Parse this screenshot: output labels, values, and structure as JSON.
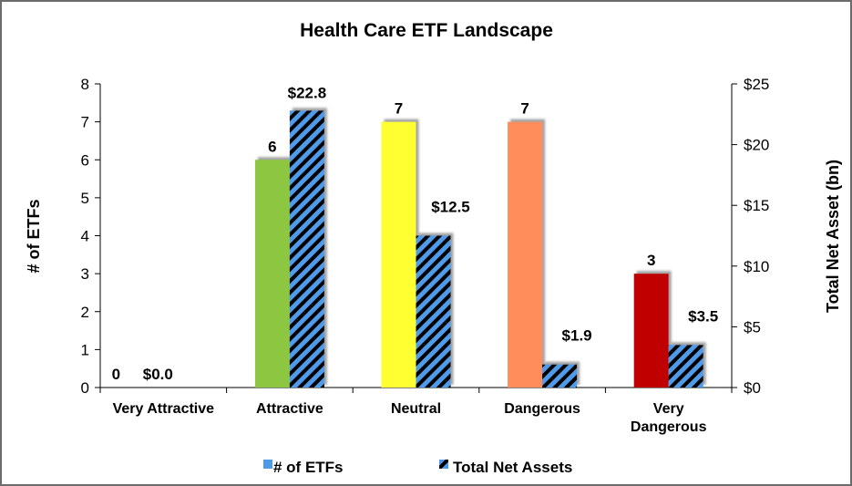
{
  "chart_data": {
    "type": "bar",
    "title": "Health Care ETF Landscape",
    "categories": [
      "Very Attractive",
      "Attractive",
      "Neutral",
      "Dangerous",
      "Very Dangerous"
    ],
    "category_lines": [
      [
        "Very Attractive"
      ],
      [
        "Attractive"
      ],
      [
        "Neutral"
      ],
      [
        "Dangerous"
      ],
      [
        "Very",
        "Dangerous"
      ]
    ],
    "ylabel": "# of ETFs",
    "y2label": "Total Net Asset (bn)",
    "ylim": [
      0,
      8
    ],
    "y2lim": [
      0,
      25
    ],
    "y_ticks": [
      "0",
      "1",
      "2",
      "3",
      "4",
      "5",
      "6",
      "7",
      "8"
    ],
    "y2_ticks": [
      "$0",
      "$5",
      "$10",
      "$15",
      "$20",
      "$25"
    ],
    "series": [
      {
        "name": "# of ETFs",
        "axis": "left",
        "values": [
          0,
          6,
          7,
          7,
          3
        ],
        "labels": [
          "0",
          "6",
          "7",
          "7",
          "3"
        ],
        "colors": [
          "#8dc63f",
          "#8dc63f",
          "#ffff33",
          "#ff8c5a",
          "#c00000"
        ],
        "legend_color": "#4f9bea"
      },
      {
        "name": "Total Net Assets",
        "axis": "right",
        "values": [
          0.0,
          22.8,
          12.5,
          1.9,
          3.5
        ],
        "labels": [
          "$0.0",
          "$22.8",
          "$12.5",
          "$1.9",
          "$3.5"
        ],
        "pattern": "diagonal stripes",
        "colors": [
          "#4f9bea",
          "#000000"
        ]
      }
    ],
    "grid": false,
    "legend_position": "bottom"
  }
}
